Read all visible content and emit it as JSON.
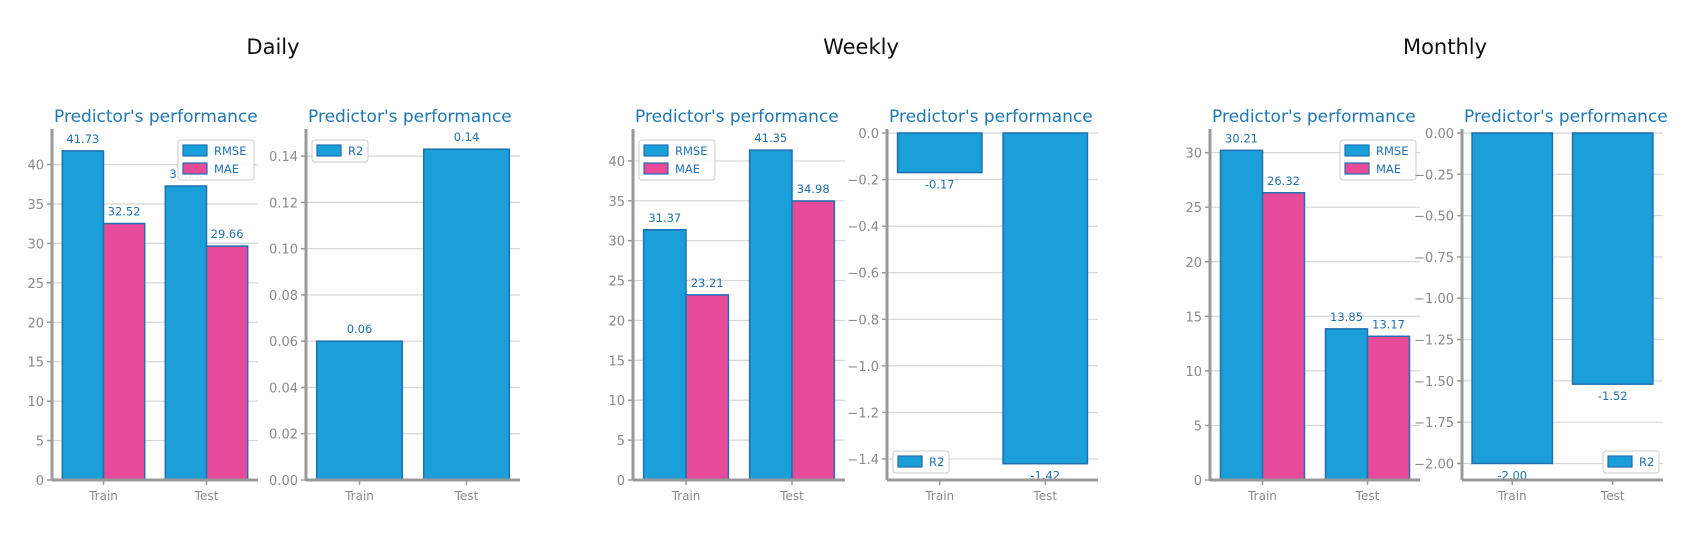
{
  "colors": {
    "rmse": "#1b9fd8",
    "mae": "#e84a9a",
    "r2": "#1b9fd8",
    "edge": "#1f6fb2",
    "axis": "#999999",
    "grid": "#d6d6d6",
    "title": "#1f77b4"
  },
  "groups": [
    {
      "title": "Daily"
    },
    {
      "title": "Weekly"
    },
    {
      "title": "Monthly"
    }
  ],
  "chart_data": [
    {
      "group": "Daily",
      "type": "bar",
      "title": "Predictor's performance",
      "categories": [
        "Train",
        "Test"
      ],
      "series": [
        {
          "name": "RMSE",
          "values": [
            41.73,
            37.28
          ]
        },
        {
          "name": "MAE",
          "values": [
            32.52,
            29.66
          ]
        }
      ],
      "value_labels": [
        [
          "41.73",
          "37.28"
        ],
        [
          "32.52",
          "29.66"
        ]
      ],
      "ylim": [
        0,
        44
      ],
      "yticks": [
        0,
        5,
        10,
        15,
        20,
        25,
        30,
        35,
        40
      ],
      "ytick_labels": [
        "0",
        "5",
        "10",
        "15",
        "20",
        "25",
        "30",
        "35",
        "40"
      ],
      "legend": "top-right",
      "grid": true
    },
    {
      "group": "Daily",
      "type": "bar",
      "title": "Predictor's performance",
      "categories": [
        "Train",
        "Test"
      ],
      "series": [
        {
          "name": "R2",
          "values": [
            0.06,
            0.143
          ]
        }
      ],
      "value_labels": [
        [
          "0.06",
          "0.14"
        ]
      ],
      "ylim": [
        0,
        0.15
      ],
      "yticks": [
        0,
        0.02,
        0.04,
        0.06,
        0.08,
        0.1,
        0.12,
        0.14
      ],
      "ytick_labels": [
        "0.00",
        "0.02",
        "0.04",
        "0.06",
        "0.08",
        "0.10",
        "0.12",
        "0.14"
      ],
      "legend": "top-left",
      "grid": true
    },
    {
      "group": "Weekly",
      "type": "bar",
      "title": "Predictor's performance",
      "categories": [
        "Train",
        "Test"
      ],
      "series": [
        {
          "name": "RMSE",
          "values": [
            31.37,
            41.35
          ]
        },
        {
          "name": "MAE",
          "values": [
            23.21,
            34.98
          ]
        }
      ],
      "value_labels": [
        [
          "31.37",
          "41.35"
        ],
        [
          "23.21",
          "34.98"
        ]
      ],
      "ylim": [
        0,
        43.5
      ],
      "yticks": [
        0,
        5,
        10,
        15,
        20,
        25,
        30,
        35,
        40
      ],
      "ytick_labels": [
        "0",
        "5",
        "10",
        "15",
        "20",
        "25",
        "30",
        "35",
        "40"
      ],
      "legend": "top-left",
      "grid": true
    },
    {
      "group": "Weekly",
      "type": "bar",
      "title": "Predictor's performance",
      "categories": [
        "Train",
        "Test"
      ],
      "series": [
        {
          "name": "R2",
          "values": [
            -0.17,
            -1.42
          ]
        }
      ],
      "value_labels": [
        [
          "-0.17",
          "-1.42"
        ]
      ],
      "ylim": [
        -1.49,
        0
      ],
      "yticks": [
        0,
        -0.2,
        -0.4,
        -0.6,
        -0.8,
        -1.0,
        -1.2,
        -1.4
      ],
      "ytick_labels": [
        "0.0",
        "−0.2",
        "−0.4",
        "−0.6",
        "−0.8",
        "−1.0",
        "−1.2",
        "−1.4"
      ],
      "legend": "bottom-left",
      "grid": true
    },
    {
      "group": "Monthly",
      "type": "bar",
      "title": "Predictor's performance",
      "categories": [
        "Train",
        "Test"
      ],
      "series": [
        {
          "name": "RMSE",
          "values": [
            30.21,
            13.85
          ]
        },
        {
          "name": "MAE",
          "values": [
            26.32,
            13.17
          ]
        }
      ],
      "value_labels": [
        [
          "30.21",
          "13.85"
        ],
        [
          "26.32",
          "13.17"
        ]
      ],
      "ylim": [
        0,
        31.8
      ],
      "yticks": [
        0,
        5,
        10,
        15,
        20,
        25,
        30
      ],
      "ytick_labels": [
        "0",
        "5",
        "10",
        "15",
        "20",
        "25",
        "30"
      ],
      "legend": "top-right",
      "grid": true
    },
    {
      "group": "Monthly",
      "type": "bar",
      "title": "Predictor's performance",
      "categories": [
        "Train",
        "Test"
      ],
      "series": [
        {
          "name": "R2",
          "values": [
            -2.0,
            -1.52
          ]
        }
      ],
      "value_labels": [
        [
          "-2.00",
          "-1.52"
        ]
      ],
      "ylim": [
        -2.1,
        0
      ],
      "yticks": [
        0,
        -0.25,
        -0.5,
        -0.75,
        -1.0,
        -1.25,
        -1.5,
        -1.75,
        -2.0
      ],
      "ytick_labels": [
        "0.00",
        "−0.25",
        "−0.50",
        "−0.75",
        "−1.00",
        "−1.25",
        "−1.50",
        "−1.75",
        "−2.00"
      ],
      "legend": "bottom-right",
      "grid": true
    }
  ]
}
